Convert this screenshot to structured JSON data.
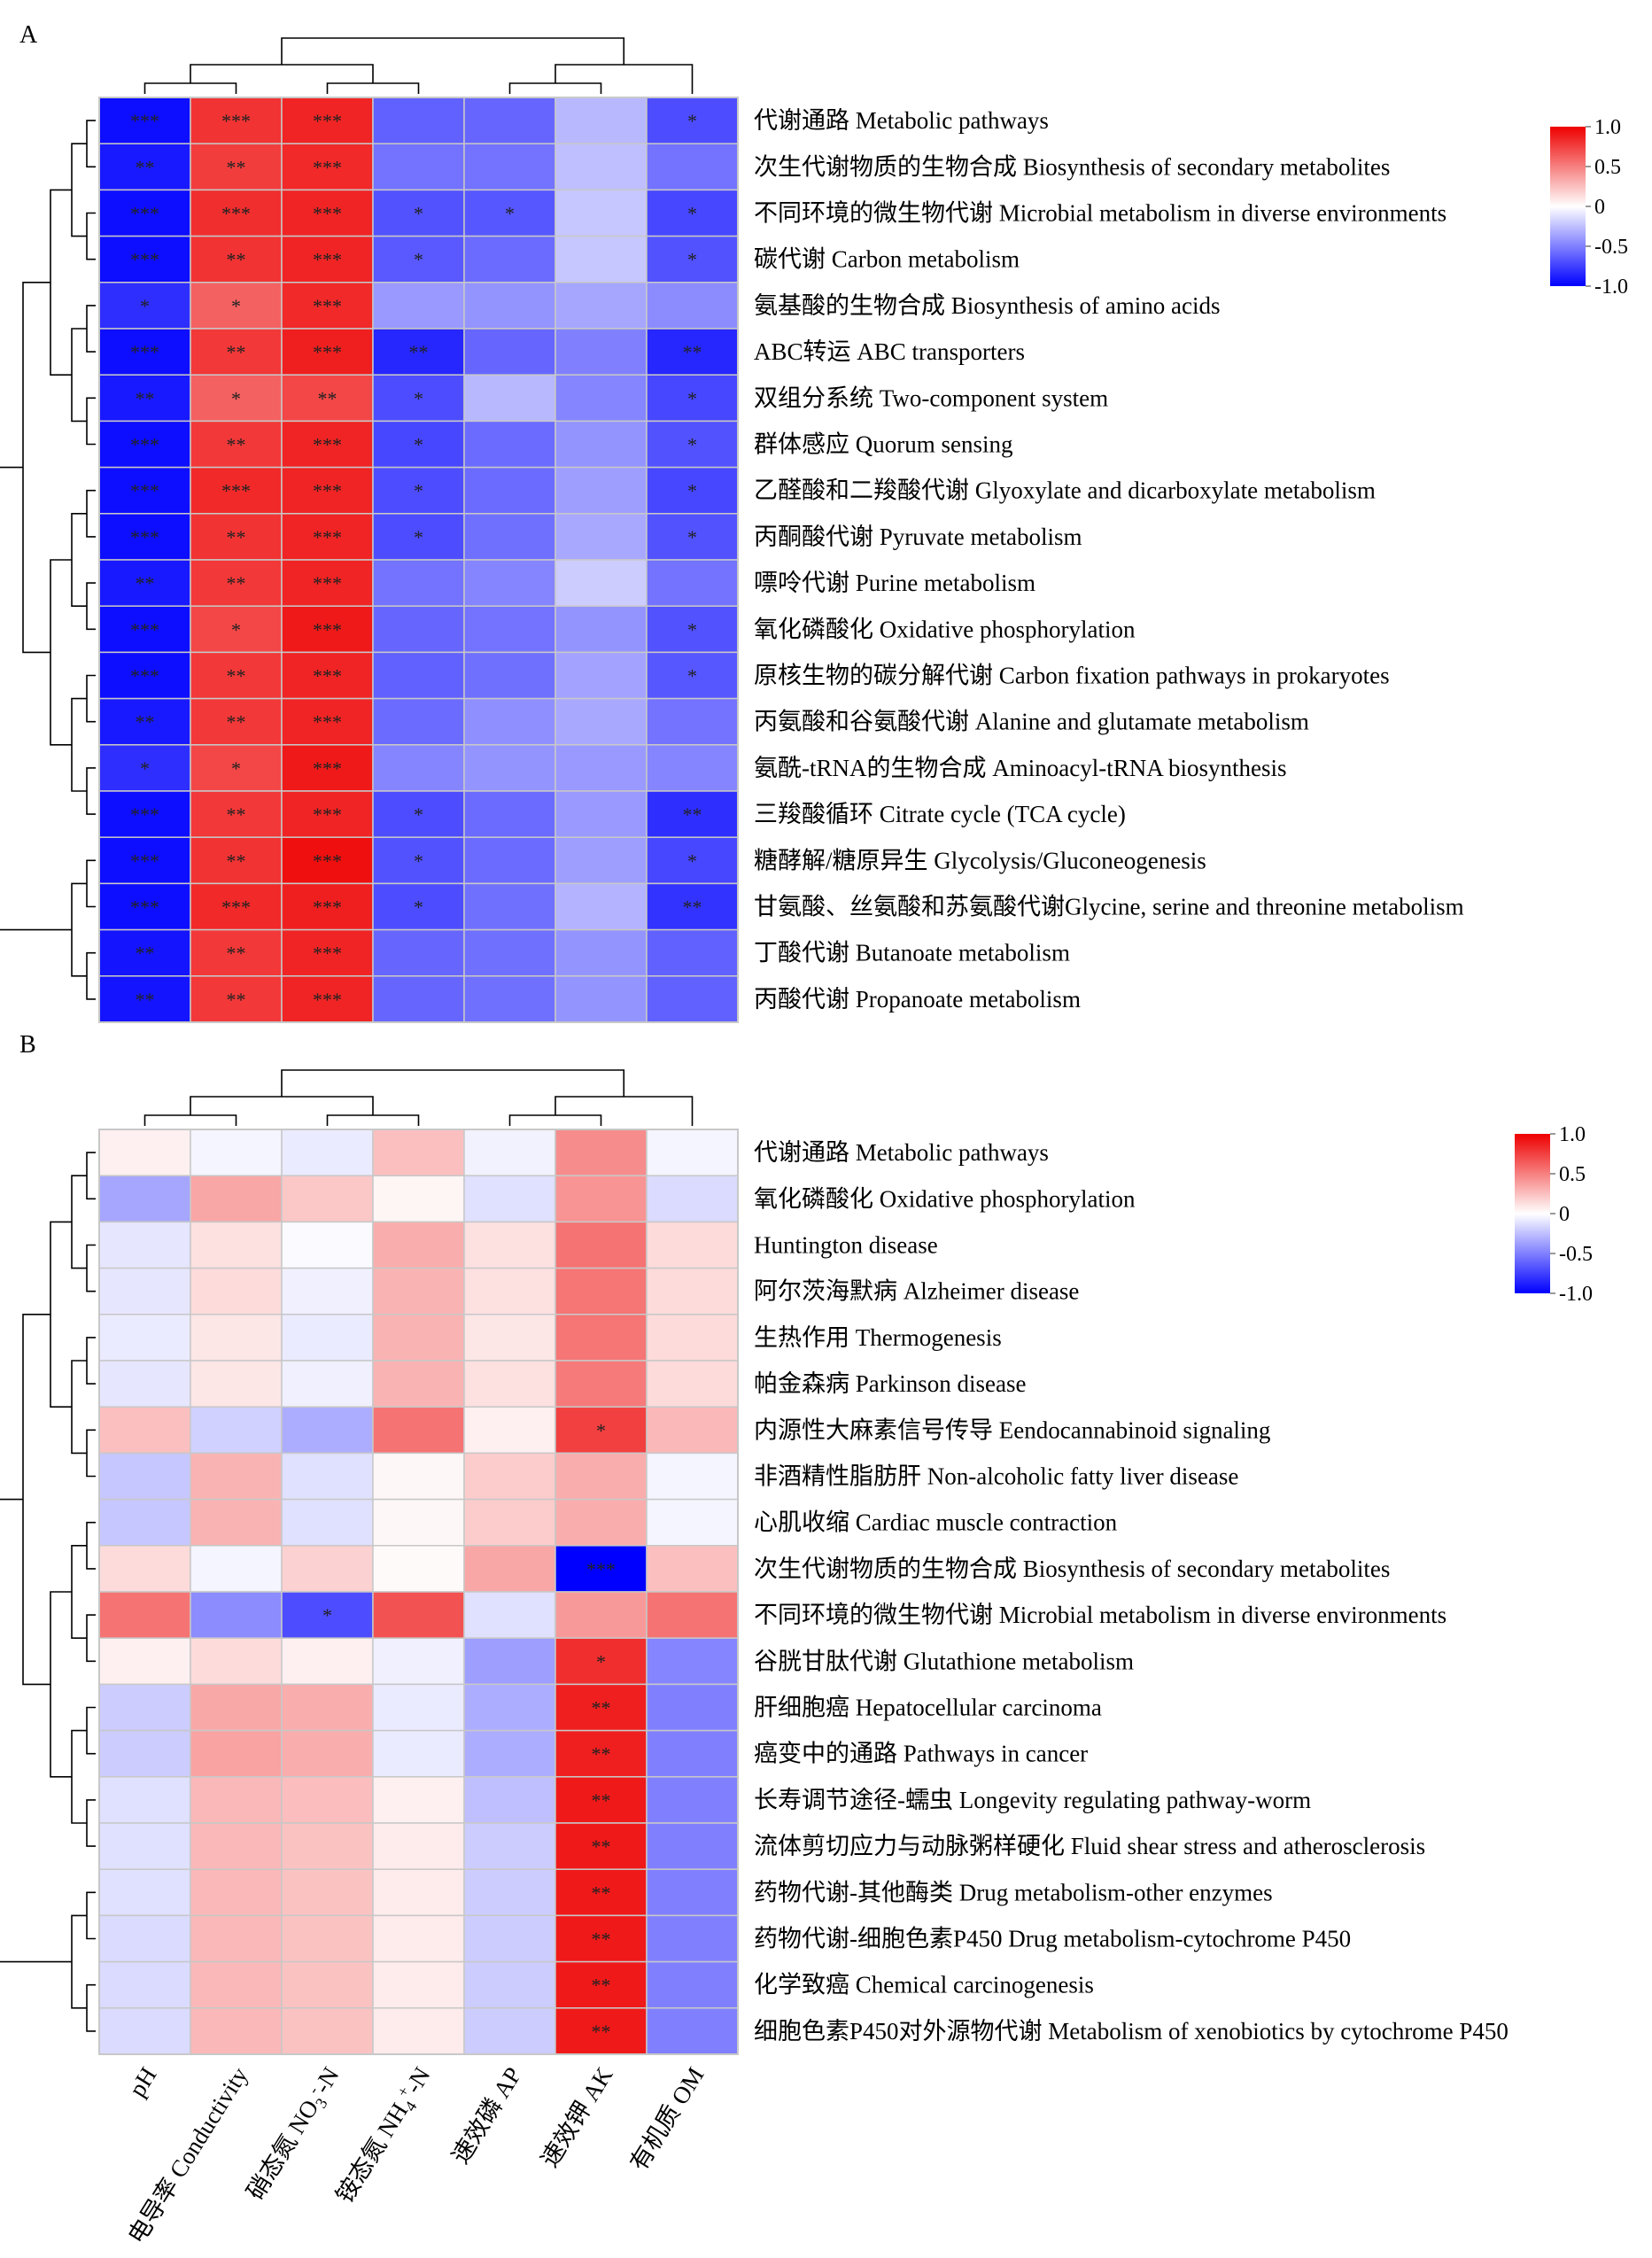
{
  "chart_data": [
    {
      "panel": "A",
      "type": "heatmap",
      "columns": [
        "pH",
        "电导率 Conductivity",
        "硝态氮 NO3-N",
        "铵态氮 NH4+-N",
        "速效磷 AP",
        "速效钾 AK",
        "有机质 OM"
      ],
      "legend": {
        "ticks": [
          "1.0",
          "0.5",
          "0",
          "-0.5",
          "-1.0"
        ],
        "range": [
          -1,
          1
        ],
        "colors": {
          "low": "#0000ff",
          "mid": "#ffffff",
          "high": "#ee0000"
        }
      },
      "rows": [
        {
          "label": "代谢通路 Metabolic pathways",
          "values": [
            -0.95,
            0.8,
            0.86,
            -0.62,
            -0.6,
            -0.28,
            -0.7
          ],
          "stars": [
            "***",
            "***",
            "***",
            "",
            "",
            "",
            "*"
          ]
        },
        {
          "label": "次生代谢物质的生物合成 Biosynthesis of secondary metabolites",
          "values": [
            -0.9,
            0.76,
            0.84,
            -0.55,
            -0.55,
            -0.25,
            -0.55
          ],
          "stars": [
            "**",
            "**",
            "***",
            "",
            "",
            "",
            ""
          ]
        },
        {
          "label": "不同环境的微生物代谢 Microbial metabolism in diverse environments",
          "values": [
            -0.95,
            0.82,
            0.86,
            -0.68,
            -0.66,
            -0.22,
            -0.72
          ],
          "stars": [
            "***",
            "***",
            "***",
            "*",
            "*",
            "",
            "*"
          ]
        },
        {
          "label": "碳代谢 Carbon metabolism",
          "values": [
            -0.95,
            0.8,
            0.86,
            -0.65,
            -0.58,
            -0.22,
            -0.68
          ],
          "stars": [
            "***",
            "**",
            "***",
            "*",
            "",
            "",
            "*"
          ]
        },
        {
          "label": "氨基酸的生物合成 Biosynthesis of amino acids",
          "values": [
            -0.82,
            0.62,
            0.84,
            -0.4,
            -0.42,
            -0.35,
            -0.45
          ],
          "stars": [
            "*",
            "*",
            "***",
            "",
            "",
            "",
            ""
          ]
        },
        {
          "label": "ABC转运 ABC transporters",
          "values": [
            -0.95,
            0.78,
            0.88,
            -0.85,
            -0.6,
            -0.5,
            -0.85
          ],
          "stars": [
            "***",
            "**",
            "***",
            "**",
            "",
            "",
            "**"
          ]
        },
        {
          "label": "双组分系统 Two-component system",
          "values": [
            -0.9,
            0.62,
            0.72,
            -0.7,
            -0.28,
            -0.48,
            -0.72
          ],
          "stars": [
            "**",
            "*",
            "**",
            "*",
            "",
            "",
            "*"
          ]
        },
        {
          "label": "群体感应 Quorum sensing",
          "values": [
            -0.95,
            0.78,
            0.86,
            -0.72,
            -0.58,
            -0.42,
            -0.68
          ],
          "stars": [
            "***",
            "**",
            "***",
            "*",
            "",
            "",
            "*"
          ]
        },
        {
          "label": "乙醛酸和二羧酸代谢 Glyoxylate and dicarboxylate metabolism",
          "values": [
            -0.95,
            0.84,
            0.86,
            -0.7,
            -0.58,
            -0.38,
            -0.72
          ],
          "stars": [
            "***",
            "***",
            "***",
            "*",
            "",
            "",
            "*"
          ]
        },
        {
          "label": "丙酮酸代谢 Pyruvate metabolism",
          "values": [
            -0.95,
            0.8,
            0.86,
            -0.7,
            -0.56,
            -0.34,
            -0.68
          ],
          "stars": [
            "***",
            "**",
            "***",
            "*",
            "",
            "",
            "*"
          ]
        },
        {
          "label": "嘌呤代谢 Purine metabolism",
          "values": [
            -0.9,
            0.78,
            0.86,
            -0.55,
            -0.48,
            -0.2,
            -0.55
          ],
          "stars": [
            "**",
            "**",
            "***",
            "",
            "",
            "",
            ""
          ]
        },
        {
          "label": "氧化磷酸化 Oxidative phosphorylation",
          "values": [
            -0.95,
            0.72,
            0.9,
            -0.6,
            -0.55,
            -0.42,
            -0.68
          ],
          "stars": [
            "***",
            "*",
            "***",
            "",
            "",
            "",
            "*"
          ]
        },
        {
          "label": "原核生物的碳分解代谢 Carbon fixation pathways in prokaryotes",
          "values": [
            -0.95,
            0.78,
            0.86,
            -0.62,
            -0.56,
            -0.36,
            -0.66
          ],
          "stars": [
            "***",
            "**",
            "***",
            "",
            "",
            "",
            "*"
          ]
        },
        {
          "label": "丙氨酸和谷氨酸代谢 Alanine and glutamate metabolism",
          "values": [
            -0.9,
            0.78,
            0.86,
            -0.58,
            -0.44,
            -0.34,
            -0.55
          ],
          "stars": [
            "**",
            "**",
            "***",
            "",
            "",
            "",
            ""
          ]
        },
        {
          "label": "氨酰-tRNA的生物合成 Aminoacyl-tRNA biosynthesis",
          "values": [
            -0.82,
            0.72,
            0.9,
            -0.48,
            -0.42,
            -0.4,
            -0.48
          ],
          "stars": [
            "*",
            "*",
            "***",
            "",
            "",
            "",
            ""
          ]
        },
        {
          "label": "三羧酸循环 Citrate cycle (TCA cycle)",
          "values": [
            -0.95,
            0.78,
            0.86,
            -0.7,
            -0.58,
            -0.4,
            -0.82
          ],
          "stars": [
            "***",
            "**",
            "***",
            "*",
            "",
            "",
            "**"
          ]
        },
        {
          "label": "糖酵解/糖原异生 Glycolysis/Gluconeogenesis",
          "values": [
            -0.95,
            0.8,
            0.94,
            -0.68,
            -0.58,
            -0.38,
            -0.72
          ],
          "stars": [
            "***",
            "**",
            "***",
            "*",
            "",
            "",
            "*"
          ]
        },
        {
          "label": "甘氨酸、丝氨酸和苏氨酸代谢Glycine, serine and threonine metabolism",
          "values": [
            -0.95,
            0.84,
            0.88,
            -0.7,
            -0.56,
            -0.3,
            -0.8
          ],
          "stars": [
            "***",
            "***",
            "***",
            "*",
            "",
            "",
            "**"
          ]
        },
        {
          "label": "丁酸代谢 Butanoate metabolism",
          "values": [
            -0.92,
            0.78,
            0.86,
            -0.6,
            -0.56,
            -0.42,
            -0.62
          ],
          "stars": [
            "**",
            "**",
            "***",
            "",
            "",
            "",
            ""
          ]
        },
        {
          "label": "丙酸代谢 Propanoate metabolism",
          "values": [
            -0.92,
            0.78,
            0.86,
            -0.6,
            -0.56,
            -0.42,
            -0.62
          ],
          "stars": [
            "**",
            "**",
            "***",
            "",
            "",
            "",
            ""
          ]
        }
      ]
    },
    {
      "panel": "B",
      "type": "heatmap",
      "columns": [
        "pH",
        "电导率 Conductivity",
        "硝态氮 NO3-N",
        "铵态氮 NH4+-N",
        "速效磷 AP",
        "速效钾 AK",
        "有机质 OM"
      ],
      "legend": {
        "ticks": [
          "1.0",
          "0.5",
          "0",
          "-0.5",
          "-1.0"
        ],
        "range": [
          -1,
          1
        ],
        "colors": {
          "low": "#0000ff",
          "mid": "#ffffff",
          "high": "#ee0000"
        }
      },
      "rows": [
        {
          "label": "代谢通路 Metabolic pathways",
          "values": [
            0.06,
            -0.04,
            -0.08,
            0.25,
            -0.05,
            0.45,
            -0.04
          ],
          "stars": [
            "",
            "",
            "",
            "",
            "",
            "",
            ""
          ]
        },
        {
          "label": "氧化磷酸化 Oxidative phosphorylation",
          "values": [
            -0.35,
            0.35,
            0.22,
            0.04,
            -0.12,
            0.42,
            -0.14
          ],
          "stars": [
            "",
            "",
            "",
            "",
            "",
            "",
            ""
          ]
        },
        {
          "label": "Huntington disease",
          "values": [
            -0.1,
            0.12,
            -0.02,
            0.32,
            0.12,
            0.55,
            0.14
          ],
          "stars": [
            "",
            "",
            "",
            "",
            "",
            "",
            ""
          ]
        },
        {
          "label": "阿尔茨海默病 Alzheimer disease",
          "values": [
            -0.1,
            0.14,
            -0.06,
            0.3,
            0.12,
            0.54,
            0.14
          ],
          "stars": [
            "",
            "",
            "",
            "",
            "",
            "",
            ""
          ]
        },
        {
          "label": "生热作用 Thermogenesis",
          "values": [
            -0.08,
            0.1,
            -0.08,
            0.3,
            0.1,
            0.54,
            0.14
          ],
          "stars": [
            "",
            "",
            "",
            "",
            "",
            "",
            ""
          ]
        },
        {
          "label": "帕金森病 Parkinson disease",
          "values": [
            -0.1,
            0.1,
            -0.06,
            0.3,
            0.12,
            0.52,
            0.14
          ],
          "stars": [
            "",
            "",
            "",
            "",
            "",
            "",
            ""
          ]
        },
        {
          "label": "内源性大麻素信号传导 Eendocannabinoid signaling",
          "values": [
            0.25,
            -0.18,
            -0.32,
            0.55,
            0.06,
            0.75,
            0.28
          ],
          "stars": [
            "",
            "",
            "",
            "",
            "",
            "*",
            ""
          ]
        },
        {
          "label": "非酒精性脂肪肝 Non-alcoholic fatty liver disease",
          "values": [
            -0.22,
            0.3,
            -0.12,
            0.03,
            0.2,
            0.32,
            -0.04
          ],
          "stars": [
            "",
            "",
            "",
            "",
            "",
            "",
            ""
          ]
        },
        {
          "label": "心肌收缩 Cardiac muscle contraction",
          "values": [
            -0.22,
            0.3,
            -0.12,
            0.03,
            0.2,
            0.32,
            -0.04
          ],
          "stars": [
            "",
            "",
            "",
            "",
            "",
            "",
            ""
          ]
        },
        {
          "label": "次生代谢物质的生物合成 Biosynthesis of secondary metabolites",
          "values": [
            0.14,
            -0.04,
            0.18,
            0.02,
            0.35,
            -1.0,
            0.25
          ],
          "stars": [
            "",
            "",
            "",
            "",
            "",
            "***",
            ""
          ]
        },
        {
          "label": "不同环境的微生物代谢 Microbial metabolism in diverse environments",
          "values": [
            0.55,
            -0.45,
            -0.7,
            0.68,
            -0.12,
            0.4,
            0.55
          ],
          "stars": [
            "",
            "",
            "*",
            "",
            "",
            "",
            ""
          ]
        },
        {
          "label": "谷胱甘肽代谢 Glutathione metabolism",
          "values": [
            0.06,
            0.14,
            0.06,
            -0.06,
            -0.38,
            0.82,
            -0.48
          ],
          "stars": [
            "",
            "",
            "",
            "",
            "",
            "*",
            ""
          ]
        },
        {
          "label": "肝细胞癌 Hepatocellular carcinoma",
          "values": [
            -0.2,
            0.34,
            0.32,
            -0.08,
            -0.32,
            0.88,
            -0.5
          ],
          "stars": [
            "",
            "",
            "",
            "",
            "",
            "**",
            ""
          ]
        },
        {
          "label": "癌变中的通路 Pathways in cancer",
          "values": [
            -0.2,
            0.36,
            0.32,
            -0.08,
            -0.32,
            0.88,
            -0.5
          ],
          "stars": [
            "",
            "",
            "",
            "",
            "",
            "**",
            ""
          ]
        },
        {
          "label": "长寿调节途径-蠕虫 Longevity regulating pathway-worm",
          "values": [
            -0.12,
            0.28,
            0.26,
            0.06,
            -0.25,
            0.9,
            -0.5
          ],
          "stars": [
            "",
            "",
            "",
            "",
            "",
            "**",
            ""
          ]
        },
        {
          "label": "流体剪切应力与动脉粥样硬化 Fluid shear stress and atherosclerosis",
          "values": [
            -0.12,
            0.28,
            0.24,
            0.08,
            -0.2,
            0.9,
            -0.5
          ],
          "stars": [
            "",
            "",
            "",
            "",
            "",
            "**",
            ""
          ]
        },
        {
          "label": "药物代谢-其他酶类 Drug metabolism-other enzymes",
          "values": [
            -0.12,
            0.28,
            0.24,
            0.08,
            -0.2,
            0.9,
            -0.5
          ],
          "stars": [
            "",
            "",
            "",
            "",
            "",
            "**",
            ""
          ]
        },
        {
          "label": "药物代谢-细胞色素P450 Drug metabolism-cytochrome P450",
          "values": [
            -0.14,
            0.28,
            0.24,
            0.08,
            -0.2,
            0.9,
            -0.5
          ],
          "stars": [
            "",
            "",
            "",
            "",
            "",
            "**",
            ""
          ]
        },
        {
          "label": "化学致癌 Chemical carcinogenesis",
          "values": [
            -0.14,
            0.28,
            0.24,
            0.08,
            -0.2,
            0.9,
            -0.5
          ],
          "stars": [
            "",
            "",
            "",
            "",
            "",
            "**",
            ""
          ]
        },
        {
          "label": "细胞色素P450对外源物代谢 Metabolism of xenobiotics by cytochrome P450",
          "values": [
            -0.14,
            0.28,
            0.24,
            0.08,
            -0.2,
            0.9,
            -0.5
          ],
          "stars": [
            "",
            "",
            "",
            "",
            "",
            "**",
            ""
          ]
        }
      ]
    }
  ]
}
